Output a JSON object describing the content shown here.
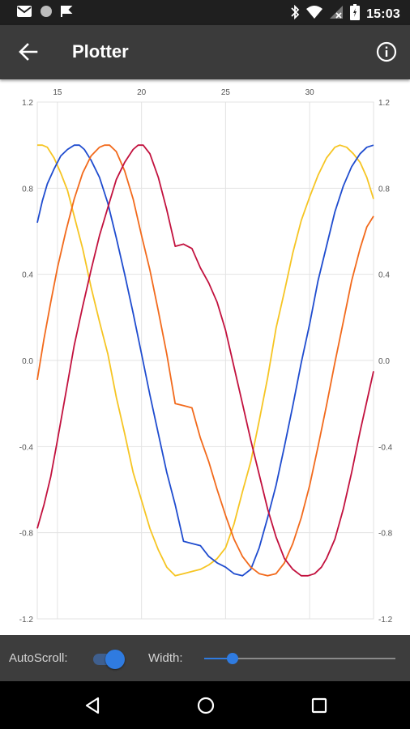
{
  "status_bar": {
    "time": "15:03",
    "icons": [
      "gmail-icon",
      "circle-icon",
      "flag-icon",
      "bluetooth-icon",
      "wifi-icon",
      "no-signal-icon",
      "battery-icon"
    ]
  },
  "app_bar": {
    "title": "Plotter",
    "back_icon": "arrow-back-icon",
    "info_icon": "info-icon"
  },
  "controls": {
    "autoscroll_label": "AutoScroll:",
    "autoscroll_on": true,
    "width_label": "Width:",
    "width_value": 0.15,
    "accent": "#2f7be0"
  },
  "nav_bar": {
    "buttons": [
      "back-triangle-icon",
      "home-circle-icon",
      "recents-square-icon"
    ]
  },
  "chart_data": {
    "type": "line",
    "title": "",
    "xlabel": "",
    "ylabel": "",
    "xlim": [
      13.8,
      33.8
    ],
    "ylim": [
      -1.2,
      1.2
    ],
    "x_ticks": [
      15,
      20,
      25,
      30
    ],
    "y_ticks": [
      1.2,
      0.8,
      0.4,
      0.0,
      -0.4,
      -0.8,
      -1.2
    ],
    "x_tick_labels": [
      "15",
      "20",
      "25",
      "30"
    ],
    "y_tick_labels": [
      "1.2",
      "0.8",
      "0.4",
      "0.0",
      "-0.4",
      "-0.8",
      "-1.2"
    ],
    "grid": true,
    "axes_top": true,
    "axes_right": true,
    "series": [
      {
        "color": "#f6c523",
        "x": [
          13.8,
          14.1,
          14.4,
          14.8,
          15.2,
          15.6,
          16.0,
          16.5,
          17.0,
          17.5,
          18.0,
          18.5,
          19.0,
          19.5,
          20.0,
          20.5,
          21.0,
          21.5,
          22.0,
          22.5,
          23.0,
          23.5,
          24.0,
          24.5,
          25.0,
          25.5,
          26.0,
          26.5,
          27.0,
          27.5,
          28.0,
          28.5,
          29.0,
          29.5,
          30.0,
          30.5,
          31.0,
          31.5,
          31.8,
          32.2,
          32.6,
          33.0,
          33.4,
          33.8
        ],
        "y": [
          1.0,
          1.0,
          0.99,
          0.94,
          0.87,
          0.79,
          0.67,
          0.52,
          0.34,
          0.18,
          0.03,
          -0.17,
          -0.34,
          -0.52,
          -0.65,
          -0.78,
          -0.88,
          -0.96,
          -1.0,
          -0.99,
          -0.98,
          -0.97,
          -0.95,
          -0.92,
          -0.87,
          -0.76,
          -0.61,
          -0.47,
          -0.28,
          -0.08,
          0.15,
          0.32,
          0.5,
          0.65,
          0.76,
          0.86,
          0.94,
          0.99,
          1.0,
          0.99,
          0.96,
          0.92,
          0.85,
          0.75
        ]
      },
      {
        "color": "#1f4ccf",
        "x": [
          13.8,
          14.1,
          14.4,
          14.8,
          15.2,
          15.6,
          16.0,
          16.3,
          16.6,
          17.0,
          17.5,
          18.0,
          18.5,
          19.0,
          19.5,
          20.0,
          20.5,
          21.0,
          21.5,
          22.0,
          22.5,
          23.0,
          23.5,
          24.0,
          24.5,
          25.0,
          25.5,
          26.0,
          26.5,
          27.0,
          27.5,
          28.0,
          28.5,
          29.0,
          29.5,
          30.0,
          30.5,
          31.0,
          31.5,
          32.0,
          32.5,
          33.0,
          33.4,
          33.8
        ],
        "y": [
          0.64,
          0.74,
          0.82,
          0.89,
          0.95,
          0.98,
          1.0,
          1.0,
          0.98,
          0.93,
          0.85,
          0.73,
          0.57,
          0.4,
          0.22,
          0.03,
          -0.16,
          -0.34,
          -0.52,
          -0.67,
          -0.84,
          -0.85,
          -0.86,
          -0.91,
          -0.94,
          -0.96,
          -0.99,
          -1.0,
          -0.97,
          -0.87,
          -0.73,
          -0.58,
          -0.4,
          -0.21,
          -0.01,
          0.17,
          0.37,
          0.53,
          0.69,
          0.81,
          0.9,
          0.96,
          0.99,
          1.0
        ]
      },
      {
        "color": "#f26a1c",
        "x": [
          13.8,
          14.2,
          14.6,
          15.0,
          15.5,
          16.0,
          16.5,
          17.0,
          17.5,
          17.8,
          18.1,
          18.5,
          19.0,
          19.5,
          20.0,
          20.5,
          21.0,
          21.5,
          22.0,
          22.5,
          23.0,
          23.5,
          24.0,
          24.5,
          25.0,
          25.5,
          26.0,
          26.5,
          27.0,
          27.5,
          28.0,
          28.5,
          29.0,
          29.5,
          30.0,
          30.5,
          31.0,
          31.5,
          32.0,
          32.5,
          33.0,
          33.4,
          33.8
        ],
        "y": [
          -0.09,
          0.1,
          0.27,
          0.43,
          0.6,
          0.75,
          0.87,
          0.95,
          0.99,
          1.0,
          1.0,
          0.97,
          0.88,
          0.75,
          0.58,
          0.42,
          0.23,
          0.03,
          -0.2,
          -0.21,
          -0.22,
          -0.36,
          -0.47,
          -0.6,
          -0.72,
          -0.83,
          -0.91,
          -0.96,
          -0.99,
          -1.0,
          -0.99,
          -0.94,
          -0.85,
          -0.73,
          -0.58,
          -0.4,
          -0.21,
          -0.01,
          0.18,
          0.37,
          0.52,
          0.62,
          0.67
        ]
      },
      {
        "color": "#c2113e",
        "x": [
          13.8,
          14.2,
          14.6,
          15.0,
          15.5,
          16.0,
          16.5,
          17.0,
          17.5,
          18.0,
          18.5,
          19.0,
          19.5,
          19.8,
          20.1,
          20.5,
          21.0,
          21.5,
          22.0,
          22.5,
          23.0,
          23.5,
          24.0,
          24.5,
          25.0,
          25.5,
          26.0,
          26.5,
          27.0,
          27.5,
          28.0,
          28.5,
          29.0,
          29.5,
          29.9,
          30.3,
          30.7,
          31.0,
          31.5,
          32.0,
          32.5,
          33.0,
          33.4,
          33.8
        ],
        "y": [
          -0.78,
          -0.67,
          -0.54,
          -0.37,
          -0.15,
          0.07,
          0.25,
          0.42,
          0.58,
          0.71,
          0.84,
          0.92,
          0.98,
          1.0,
          1.0,
          0.96,
          0.85,
          0.7,
          0.53,
          0.54,
          0.52,
          0.43,
          0.36,
          0.27,
          0.14,
          -0.03,
          -0.2,
          -0.37,
          -0.53,
          -0.69,
          -0.82,
          -0.92,
          -0.97,
          -1.0,
          -1.0,
          -0.99,
          -0.96,
          -0.92,
          -0.83,
          -0.69,
          -0.52,
          -0.33,
          -0.19,
          -0.05
        ]
      }
    ]
  }
}
